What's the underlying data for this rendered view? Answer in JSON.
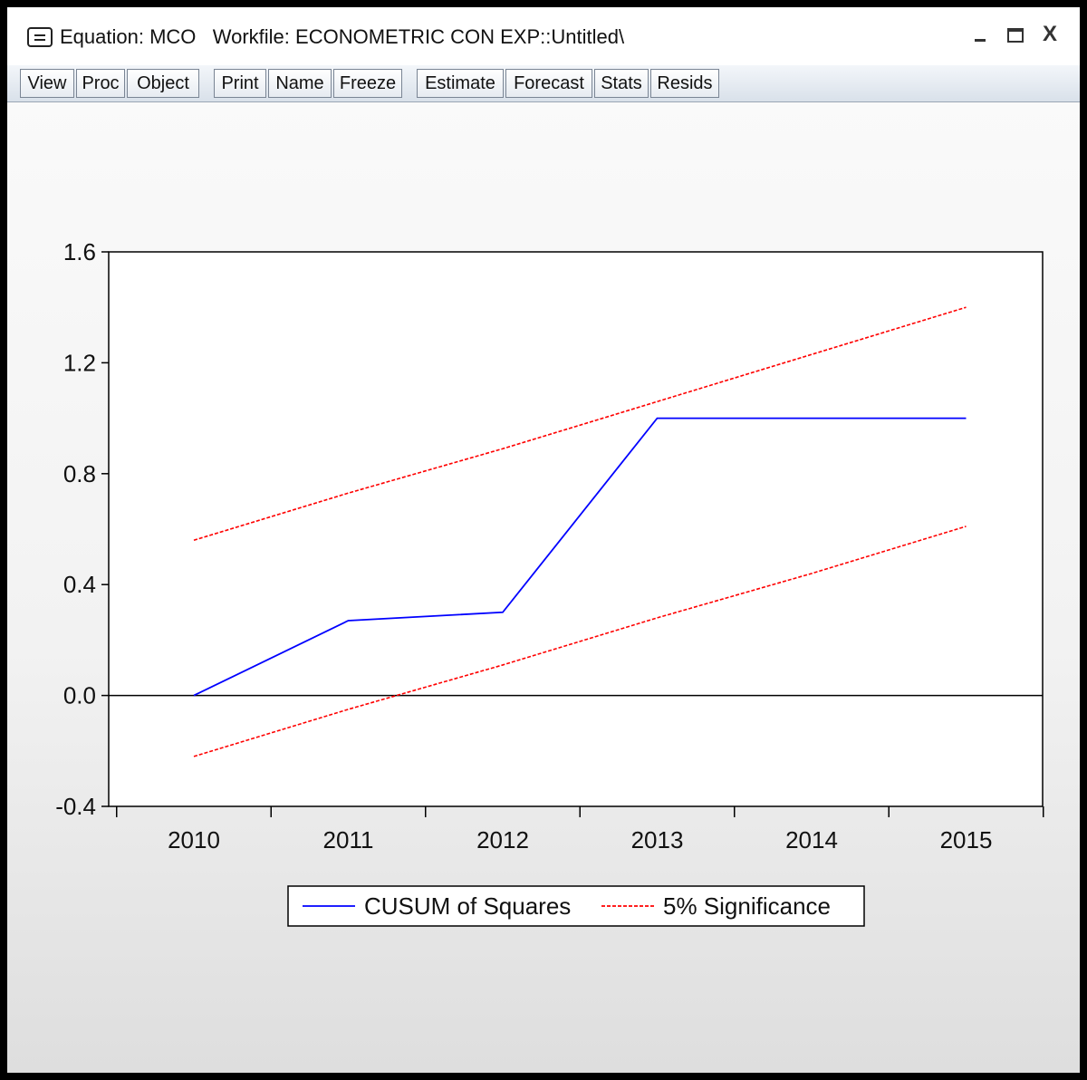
{
  "window": {
    "title": "Equation: MCO   Workfile: ECONOMETRIC CON EXP::Untitled\\",
    "controls": {
      "minimize": "_",
      "maximize": "□",
      "close": "X"
    }
  },
  "toolbar": {
    "buttons": [
      "View",
      "Proc",
      "Object",
      "Print",
      "Name",
      "Freeze",
      "Estimate",
      "Forecast",
      "Stats",
      "Resids"
    ]
  },
  "chart_data": {
    "type": "line",
    "x": [
      2010,
      2011,
      2012,
      2013,
      2014,
      2015
    ],
    "x_tick_labels": [
      "2010",
      "2011",
      "2012",
      "2013",
      "2014",
      "2015"
    ],
    "ylim": [
      -0.4,
      1.6
    ],
    "y_ticks": [
      -0.4,
      0.0,
      0.4,
      0.8,
      1.2,
      1.6
    ],
    "y_tick_labels": [
      "-0.4",
      "0.0",
      "0.4",
      "0.8",
      "1.2",
      "1.6"
    ],
    "reference_line_y": 0.0,
    "legend_position": "bottom-center",
    "grid": false,
    "series": [
      {
        "name": "CUSUM of Squares",
        "color": "#0000ff",
        "dash": "solid",
        "values": [
          0.0,
          0.27,
          0.3,
          1.0,
          1.0,
          1.0
        ]
      },
      {
        "name": "5% Significance",
        "color": "#ff0000",
        "dash": "dashed",
        "legend": true,
        "values": [
          0.56,
          0.73,
          0.89,
          1.06,
          1.23,
          1.4
        ]
      },
      {
        "name": "",
        "color": "#ff0000",
        "dash": "dashed",
        "legend": false,
        "values": [
          -0.22,
          -0.05,
          0.11,
          0.28,
          0.44,
          0.61
        ]
      }
    ]
  }
}
